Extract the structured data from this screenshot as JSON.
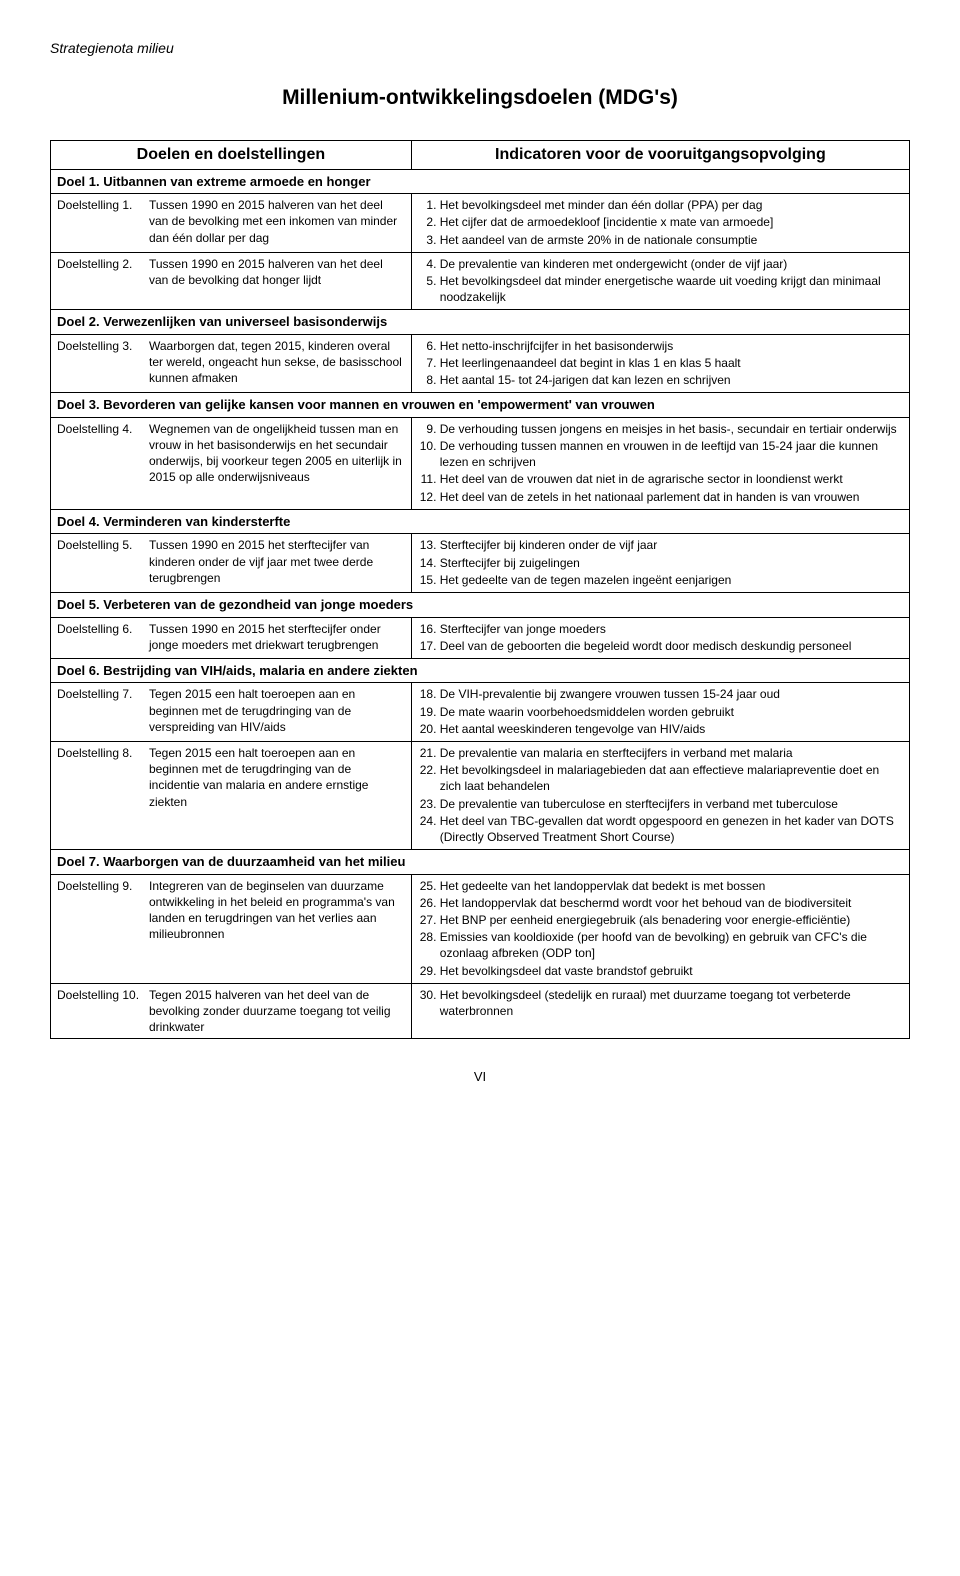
{
  "doc_header": "Strategienota milieu",
  "title": "Millenium-ontwikkelingsdoelen (MDG's)",
  "col_left": "Doelen en doelstellingen",
  "col_right": "Indicatoren voor de vooruitgangsopvolging",
  "footer": "VI",
  "goals": [
    {
      "header": "Doel 1. Uitbannen van extreme armoede en honger",
      "rows": [
        {
          "label": "Doelstelling 1.",
          "text": "Tussen 1990 en 2015 halveren van het deel van de bevolking met een inkomen van minder dan één dollar per dag",
          "ind_start": 1,
          "indicators": [
            "Het bevolkingsdeel met minder dan één dollar (PPA) per dag",
            "Het cijfer dat de armoedekloof [incidentie x mate van armoede]",
            "Het aandeel van de armste 20% in de nationale consumptie"
          ]
        },
        {
          "label": "Doelstelling 2.",
          "text": "Tussen 1990 en 2015 halveren van het deel van de bevolking dat honger lijdt",
          "ind_start": 4,
          "indicators": [
            "De prevalentie van kinderen met ondergewicht (onder de vijf jaar)",
            "Het bevolkingsdeel dat minder energetische waarde uit voeding krijgt dan minimaal noodzakelijk"
          ]
        }
      ]
    },
    {
      "header": "Doel 2. Verwezenlijken van universeel basisonderwijs",
      "rows": [
        {
          "label": "Doelstelling 3.",
          "text": "Waarborgen dat, tegen 2015, kinderen overal ter wereld, ongeacht hun sekse, de basisschool kunnen afmaken",
          "ind_start": 6,
          "indicators": [
            "Het netto-inschrijfcijfer in het basisonderwijs",
            "Het leerlingenaandeel dat begint in klas 1 en klas 5 haalt",
            "Het aantal 15- tot 24-jarigen dat kan lezen en schrijven"
          ]
        }
      ]
    },
    {
      "header": "Doel 3. Bevorderen van gelijke kansen voor mannen en vrouwen en 'empowerment' van vrouwen",
      "rows": [
        {
          "label": "Doelstelling 4.",
          "text": "Wegnemen van de ongelijkheid tussen man en vrouw in het basisonderwijs en het secundair onderwijs, bij voorkeur tegen 2005 en uiterlijk in 2015 op alle onderwijsniveaus",
          "ind_start": 9,
          "indicators": [
            "De verhouding tussen jongens en meisjes in het basis-, secundair en tertiair onderwijs",
            "De verhouding tussen mannen en vrouwen in de leeftijd van 15-24 jaar die kunnen lezen en schrijven",
            "Het deel van de vrouwen dat niet in de agrarische sector in loondienst werkt",
            "Het deel van de zetels in het nationaal parlement dat in handen is van vrouwen"
          ]
        }
      ]
    },
    {
      "header": "Doel 4. Verminderen van kindersterfte",
      "rows": [
        {
          "label": "Doelstelling 5.",
          "text": "Tussen 1990 en 2015 het sterftecijfer van kinderen onder de vijf jaar met twee derde terugbrengen",
          "ind_start": 13,
          "indicators": [
            "Sterftecijfer bij kinderen onder de vijf jaar",
            "Sterftecijfer bij zuigelingen",
            "Het gedeelte van de tegen mazelen ingeënt eenjarigen"
          ]
        }
      ]
    },
    {
      "header": "Doel 5. Verbeteren van de gezondheid van jonge moeders",
      "rows": [
        {
          "label": "Doelstelling 6.",
          "text": "Tussen 1990 en 2015 het sterftecijfer onder jonge moeders met driekwart terugbrengen",
          "ind_start": 16,
          "indicators": [
            "Sterftecijfer van jonge moeders",
            "Deel van de geboorten die begeleid wordt door medisch deskundig personeel"
          ]
        }
      ]
    },
    {
      "header": "Doel 6. Bestrijding van VIH/aids, malaria en andere ziekten",
      "rows": [
        {
          "label": "Doelstelling 7.",
          "text": "Tegen 2015 een halt toeroepen aan en beginnen met de terugdringing van de verspreiding van HIV/aids",
          "ind_start": 18,
          "indicators": [
            "De VIH-prevalentie bij zwangere vrouwen tussen 15-24 jaar oud",
            "De mate waarin voorbehoedsmiddelen worden gebruikt",
            "Het aantal weeskinderen tengevolge van HIV/aids"
          ]
        },
        {
          "label": "Doelstelling 8.",
          "text": "Tegen 2015 een halt toeroepen aan en beginnen met de terugdringing van de incidentie van malaria en andere ernstige ziekten",
          "ind_start": 21,
          "indicators": [
            "De prevalentie van malaria en sterftecijfers in verband met malaria",
            "Het bevolkingsdeel in malariagebieden dat aan effectieve malariapreventie doet en zich laat behandelen",
            "De prevalentie van tuberculose en sterftecijfers in verband met tuberculose",
            "Het deel van TBC-gevallen dat wordt opgespoord en genezen in het kader van DOTS (Directly Observed Treatment Short Course)"
          ],
          "standalone": true
        }
      ]
    },
    {
      "header": "Doel 7. Waarborgen van de duurzaamheid van het milieu",
      "rows": [
        {
          "label": "Doelstelling 9.",
          "text": "Integreren van de beginselen van duurzame ontwikkeling in het beleid en programma's van landen en terugdringen van het verlies aan milieubronnen",
          "ind_start": 25,
          "indicators": [
            "Het gedeelte van het landoppervlak dat bedekt is met bossen",
            "Het landoppervlak dat beschermd wordt voor het behoud van de biodiversiteit",
            "Het BNP per eenheid energiegebruik (als benadering voor energie-efficiëntie)",
            "Emissies van kooldioxide (per hoofd van de bevolking) en gebruik van CFC's die ozonlaag afbreken (ODP ton]",
            "Het bevolkingsdeel dat vaste brandstof gebruikt"
          ]
        },
        {
          "label": "Doelstelling 10.",
          "text": "Tegen 2015 halveren van het deel van de bevolking zonder duurzame toegang tot veilig drinkwater",
          "ind_start": 30,
          "indicators": [
            "Het bevolkingsdeel (stedelijk en ruraal) met duurzame toegang tot verbeterde waterbronnen"
          ]
        }
      ]
    }
  ]
}
